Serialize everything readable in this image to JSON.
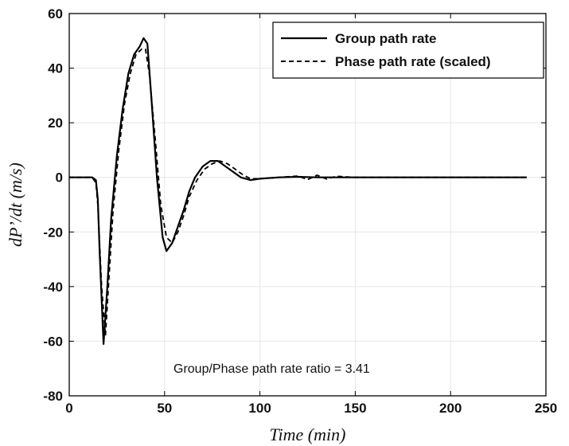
{
  "chart_data": {
    "type": "line",
    "title": "",
    "xlabel": "Time (min)",
    "ylabel": "dP’/dt (m/s)",
    "xlim": [
      0,
      250
    ],
    "ylim": [
      -80,
      60
    ],
    "xticks": [
      0,
      50,
      100,
      150,
      200,
      250
    ],
    "yticks": [
      -80,
      -60,
      -40,
      -20,
      0,
      20,
      40,
      60
    ],
    "grid": true,
    "legend_position": "top-right",
    "annotation": "Group/Phase path rate ratio =  3.41",
    "series": [
      {
        "name": "Group path rate",
        "style": "solid",
        "color": "#000000",
        "x": [
          0,
          12,
          14,
          15,
          16,
          18,
          20,
          22,
          25,
          28,
          31,
          34,
          37,
          39,
          41,
          43,
          46,
          49,
          51,
          54,
          57,
          60,
          63,
          66,
          70,
          74,
          78,
          82,
          86,
          90,
          95,
          100,
          110,
          120,
          130,
          140,
          150,
          200,
          240
        ],
        "y": [
          0,
          0,
          -1,
          -8,
          -28,
          -61,
          -40,
          -15,
          8,
          25,
          38,
          45,
          48,
          51,
          49,
          30,
          0,
          -22,
          -27,
          -24,
          -18,
          -12,
          -5,
          0,
          4,
          6,
          6,
          4,
          2,
          0,
          -1,
          -0.5,
          0,
          0.2,
          0,
          0,
          0,
          0,
          0
        ]
      },
      {
        "name": "Phase path rate (scaled)",
        "style": "dashed",
        "color": "#000000",
        "x": [
          0,
          12,
          14,
          15,
          17,
          19,
          21,
          23,
          26,
          29,
          32,
          35,
          38,
          40,
          42,
          45,
          48,
          51,
          54,
          57,
          60,
          63,
          67,
          71,
          75,
          79,
          83,
          87,
          91,
          95,
          100,
          110,
          120,
          125,
          130,
          135,
          140,
          150,
          200,
          240
        ],
        "y": [
          0,
          0,
          -2,
          -10,
          -40,
          -58,
          -35,
          -12,
          10,
          27,
          38,
          45,
          47,
          47,
          38,
          15,
          -10,
          -22,
          -24,
          -20,
          -14,
          -7,
          -1,
          3,
          5,
          6,
          5,
          3,
          1,
          -0.5,
          -0.5,
          0,
          0.5,
          -0.8,
          0.8,
          -0.6,
          0.4,
          0,
          0,
          0
        ]
      }
    ]
  }
}
